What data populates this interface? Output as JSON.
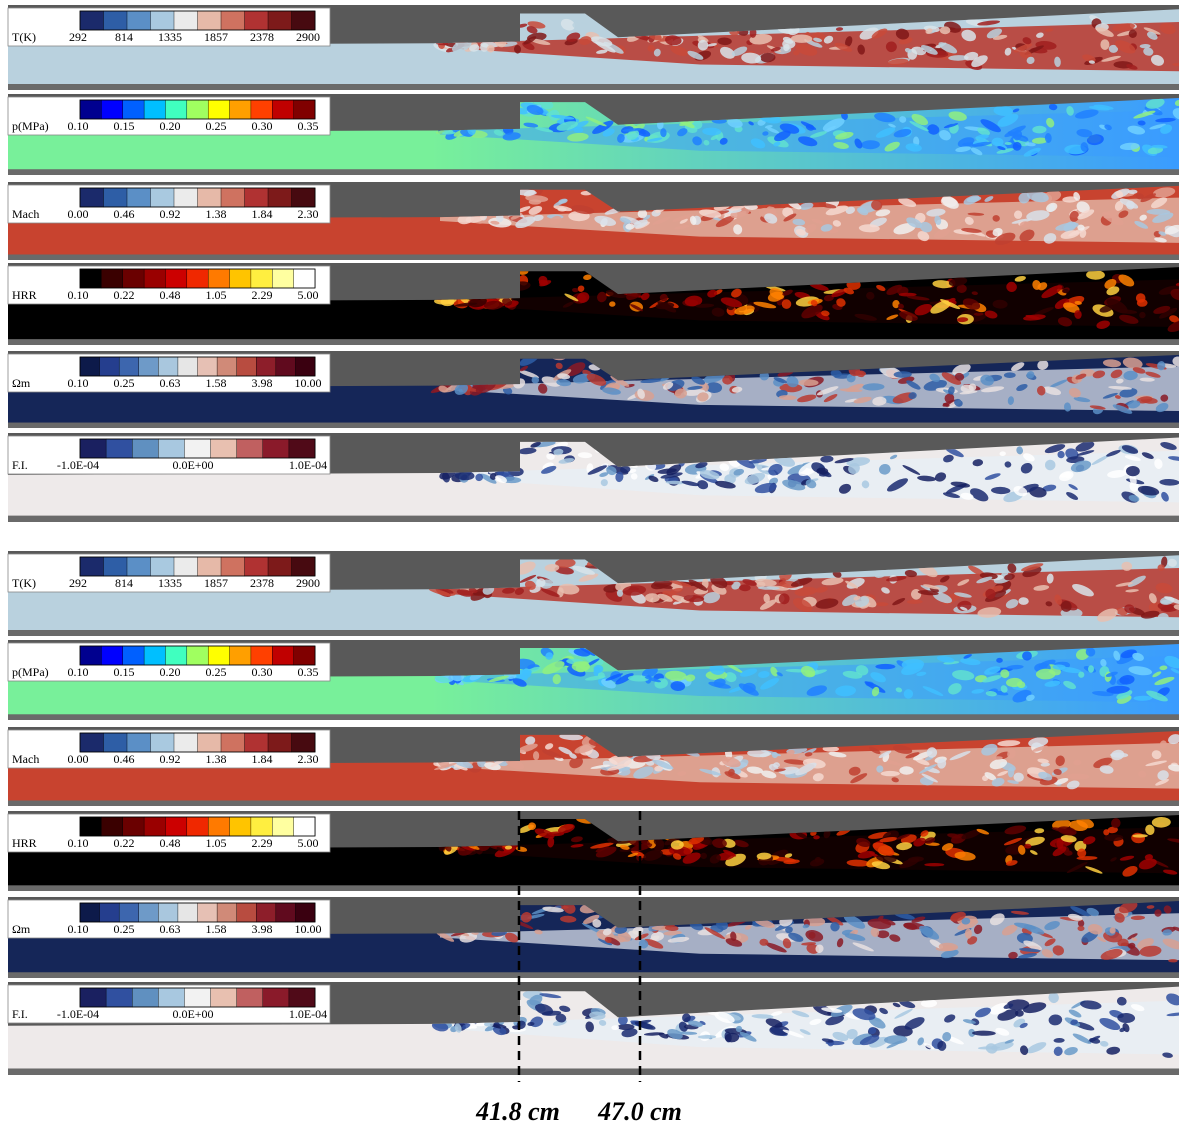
{
  "groups": [
    {
      "panels": [
        {
          "label": "T(K)",
          "ticks": [
            "292",
            "814",
            "1335",
            "1857",
            "2378",
            "2900"
          ]
        },
        {
          "label": "p(MPa)",
          "ticks": [
            "0.10",
            "0.15",
            "0.20",
            "0.25",
            "0.30",
            "0.35"
          ]
        },
        {
          "label": "Mach",
          "ticks": [
            "0.00",
            "0.46",
            "0.92",
            "1.38",
            "1.84",
            "2.30"
          ]
        },
        {
          "label": "HRR",
          "ticks": [
            "0.10",
            "0.22",
            "0.48",
            "1.05",
            "2.29",
            "5.00"
          ]
        },
        {
          "label": "Ωm",
          "ticks": [
            "0.10",
            "0.25",
            "0.63",
            "1.58",
            "3.98",
            "10.00"
          ]
        },
        {
          "label": "F.I.",
          "ticks": [
            "-1.0E-04",
            "0.0E+00",
            "1.0E-04"
          ]
        }
      ]
    },
    {
      "panels": [
        {
          "label": "T(K)",
          "ticks": [
            "292",
            "814",
            "1335",
            "1857",
            "2378",
            "2900"
          ]
        },
        {
          "label": "p(MPa)",
          "ticks": [
            "0.10",
            "0.15",
            "0.20",
            "0.25",
            "0.30",
            "0.35"
          ]
        },
        {
          "label": "Mach",
          "ticks": [
            "0.00",
            "0.46",
            "0.92",
            "1.38",
            "1.84",
            "2.30"
          ]
        },
        {
          "label": "HRR",
          "ticks": [
            "0.10",
            "0.22",
            "0.48",
            "1.05",
            "2.29",
            "5.00"
          ]
        },
        {
          "label": "Ωm",
          "ticks": [
            "0.10",
            "0.25",
            "0.63",
            "1.58",
            "3.98",
            "10.00"
          ]
        },
        {
          "label": "F.I.",
          "ticks": [
            "-1.0E-04",
            "0.0E+00",
            "1.0E-04"
          ]
        }
      ]
    }
  ],
  "annotations": [
    "41.8 cm",
    "47.0 cm"
  ]
}
